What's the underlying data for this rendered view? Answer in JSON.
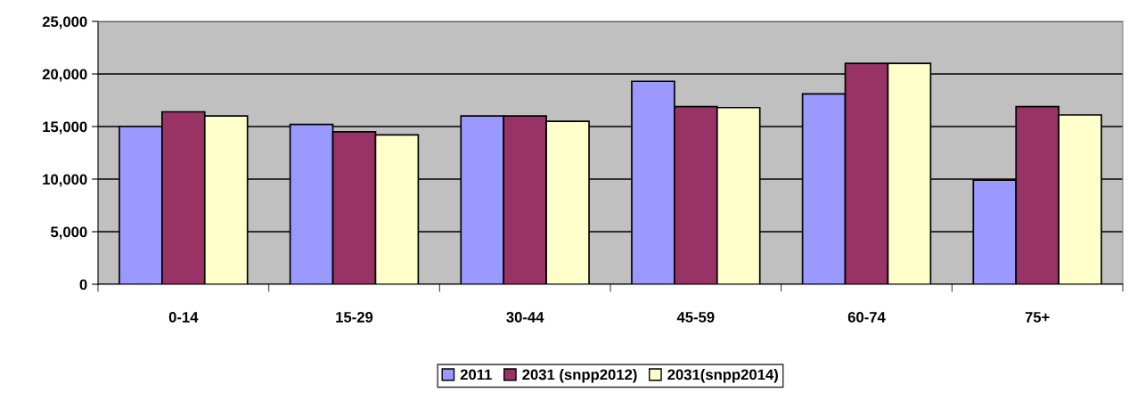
{
  "chart_data": {
    "type": "bar",
    "categories": [
      "0-14",
      "15-29",
      "30-44",
      "45-59",
      "60-74",
      "75+"
    ],
    "series": [
      {
        "name": "2011",
        "color": "#9999ff",
        "values": [
          15000,
          15200,
          16000,
          19300,
          18100,
          9900
        ]
      },
      {
        "name": "2031 (snpp2012)",
        "color": "#993366",
        "values": [
          16400,
          14500,
          16000,
          16900,
          21000,
          16900
        ]
      },
      {
        "name": "2031(snpp2014)",
        "color": "#ffffcc",
        "values": [
          16000,
          14200,
          15500,
          16800,
          21000,
          16100
        ]
      }
    ],
    "ylim": [
      0,
      25000
    ],
    "yticks": [
      {
        "value": 0,
        "label": "0"
      },
      {
        "value": 5000,
        "label": "5,000"
      },
      {
        "value": 10000,
        "label": "10,000"
      },
      {
        "value": 15000,
        "label": "15,000"
      },
      {
        "value": 20000,
        "label": "20,000"
      },
      {
        "value": 25000,
        "label": "25,000"
      }
    ],
    "grid": "y",
    "legend": "bottom"
  }
}
